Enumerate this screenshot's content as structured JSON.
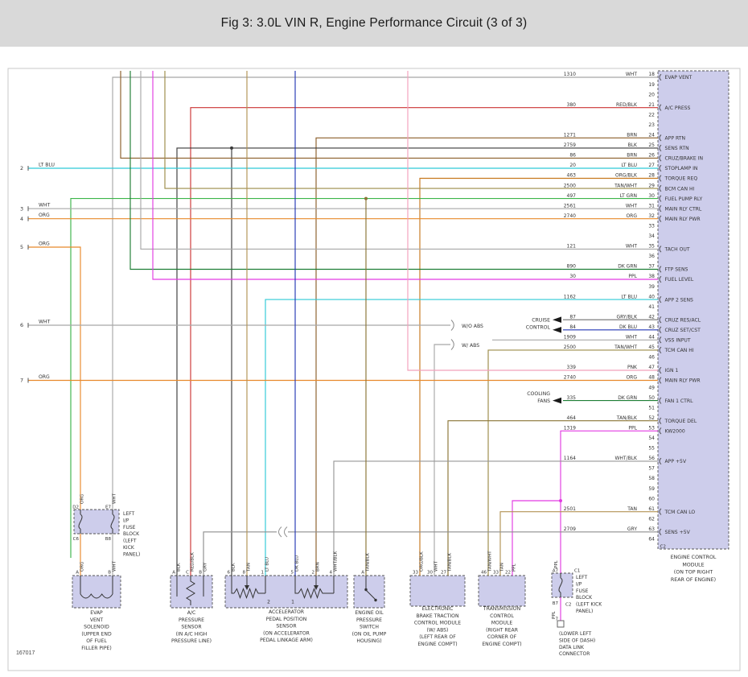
{
  "title": "Fig 3: 3.0L VIN R, Engine Performance Circuit (3 of 3)",
  "footer_code": "167017",
  "wire_colors": {
    "WHT": "#a8a8a8",
    "BLK": "#3a3a3a",
    "GRY": "#8f8f8f",
    "GRY/BLK": "#6f6f6f",
    "WHT/BLK": "#979797",
    "RED/BLK": "#cc3333",
    "BRN": "#8b5e2a",
    "LT BLU": "#2ec9d6",
    "DK BLU": "#2438b5",
    "LT GRN": "#3cb54a",
    "DK GRN": "#1e7e34",
    "ORG": "#e8892b",
    "ORG/BLK": "#c7781e",
    "TAN": "#b29354",
    "TAN/WHT": "#9b8b47",
    "TAN/BLK": "#8a7435",
    "PPL": "#e23be2",
    "PNK": "#f2a0bb"
  },
  "ecm": {
    "connector": "C2",
    "caption": [
      "ENGINE CONTROL",
      "MODULE",
      "(ON TOP RIGHT",
      "REAR OF ENGINE)"
    ],
    "pins": [
      {
        "n": 18,
        "circuit": "1310",
        "color": "WHT",
        "label": "EVAP VENT"
      },
      {
        "n": 19
      },
      {
        "n": 20
      },
      {
        "n": 21,
        "circuit": "380",
        "color": "RED/BLK",
        "label": "A/C PRESS"
      },
      {
        "n": 22
      },
      {
        "n": 23
      },
      {
        "n": 24,
        "circuit": "1271",
        "color": "BRN",
        "label": "APP RTN"
      },
      {
        "n": 25,
        "circuit": "2759",
        "color": "BLK",
        "label": "SENS RTN"
      },
      {
        "n": 26,
        "circuit": "86",
        "color": "BRN",
        "label": "CRUZ/BRAKE IN"
      },
      {
        "n": 27,
        "circuit": "20",
        "color": "LT BLU",
        "label": "STOPLAMP IN"
      },
      {
        "n": 28,
        "circuit": "463",
        "color": "ORG/BLK",
        "label": "TORQUE REQ"
      },
      {
        "n": 29,
        "circuit": "2500",
        "color": "TAN/WHT",
        "label": "BCM CAN HI"
      },
      {
        "n": 30,
        "circuit": "497",
        "color": "LT GRN",
        "label": "FUEL PUMP RLY"
      },
      {
        "n": 31,
        "circuit": "2561",
        "color": "WHT",
        "label": "MAIN RLY CTRL"
      },
      {
        "n": 32,
        "circuit": "2740",
        "color": "ORG",
        "label": "MAIN RLY PWR"
      },
      {
        "n": 33
      },
      {
        "n": 34
      },
      {
        "n": 35,
        "circuit": "121",
        "color": "WHT",
        "label": "TACH OUT"
      },
      {
        "n": 36
      },
      {
        "n": 37,
        "circuit": "890",
        "color": "DK GRN",
        "label": "FTP SENS"
      },
      {
        "n": 38,
        "circuit": "30",
        "color": "PPL",
        "label": "FUEL LEVEL"
      },
      {
        "n": 39
      },
      {
        "n": 40,
        "circuit": "1162",
        "color": "LT BLU",
        "label": "APP 2 SENS"
      },
      {
        "n": 41
      },
      {
        "n": 42,
        "circuit": "87",
        "color": "GRY/BLK",
        "label": "CRUZ RES/ACL"
      },
      {
        "n": 43,
        "circuit": "84",
        "color": "DK BLU",
        "label": "CRUZ SET/CST"
      },
      {
        "n": 44,
        "circuit": "1909",
        "color": "WHT",
        "label": "VSS INPUT"
      },
      {
        "n": 45,
        "circuit": "2500",
        "color": "TAN/WHT",
        "label": "TCM CAN HI"
      },
      {
        "n": 46
      },
      {
        "n": 47,
        "circuit": "339",
        "color": "PNK",
        "label": "IGN 1"
      },
      {
        "n": 48,
        "circuit": "2740",
        "color": "ORG",
        "label": "MAIN RLY PWR"
      },
      {
        "n": 49
      },
      {
        "n": 50,
        "circuit": "335",
        "color": "DK GRN",
        "label": "FAN 1 CTRL"
      },
      {
        "n": 51
      },
      {
        "n": 52,
        "circuit": "464",
        "color": "TAN/BLK",
        "label": "TORQUE DEL"
      },
      {
        "n": 53,
        "circuit": "1319",
        "color": "PPL",
        "label": "KW2000"
      },
      {
        "n": 54
      },
      {
        "n": 55
      },
      {
        "n": 56,
        "circuit": "1164",
        "color": "WHT/BLK",
        "label": "APP +5V"
      },
      {
        "n": 57
      },
      {
        "n": 58
      },
      {
        "n": 59
      },
      {
        "n": 60
      },
      {
        "n": 61,
        "circuit": "2501",
        "color": "TAN",
        "label": "TCM CAN LO"
      },
      {
        "n": 62
      },
      {
        "n": 63,
        "circuit": "2709",
        "color": "GRY",
        "label": "SENS +5V"
      },
      {
        "n": 64
      }
    ]
  },
  "left_taps": [
    {
      "n": "2",
      "color": "LT BLU"
    },
    {
      "n": "3",
      "color": "WHT"
    },
    {
      "n": "4",
      "color": "ORG"
    },
    {
      "n": "5",
      "color": "ORG"
    },
    {
      "n": "6",
      "color": "WHT"
    },
    {
      "n": "7",
      "color": "ORG"
    }
  ],
  "annotations": {
    "cruise_control": [
      "CRUISE",
      "CONTROL"
    ],
    "cooling_fans": [
      "COOLING",
      "FANS"
    ],
    "without_abs": "W/O ABS",
    "with_abs": "W/ ABS"
  },
  "components": [
    {
      "id": "evap",
      "pins": [
        {
          "id": "A",
          "color": "ORG"
        },
        {
          "id": "B",
          "color": "WHT"
        }
      ],
      "caption": [
        "EVAP",
        "VENT",
        "SOLENOID",
        "(UPPER END",
        "OF FUEL",
        "FILLER PIPE)"
      ]
    },
    {
      "id": "ac",
      "pins": [
        {
          "id": "A",
          "color": "BLK"
        },
        {
          "id": "C",
          "color": "RED/BLK"
        },
        {
          "id": "B",
          "color": "GRY"
        }
      ],
      "caption": [
        "A/C",
        "PRESSURE",
        "SENSOR",
        "(IN A/C HIGH",
        "PRESSURE LINE)"
      ]
    },
    {
      "id": "app",
      "pins": [
        {
          "id": "6",
          "color": "BLK"
        },
        {
          "id": "8",
          "color": "TAN"
        },
        {
          "id": "1",
          "color": "LT BLU"
        },
        {
          "id": "5",
          "color": "DK BLU"
        },
        {
          "id": "2",
          "color": "BRN"
        },
        {
          "id": "4",
          "color": "WHT/BLK"
        }
      ],
      "internal_labels": [
        "2",
        "1"
      ],
      "caption": [
        "ACCELERATOR",
        "PEDAL POSITION",
        "SENSOR",
        "(ON ACCELERATOR",
        "PEDAL LINKAGE ARM)"
      ]
    },
    {
      "id": "oil",
      "pins": [
        {
          "id": "A",
          "color": "TAN/BLK"
        }
      ],
      "caption": [
        "ENGINE OIL",
        "PRESSURE",
        "SWITCH",
        "(ON OIL PUMP",
        "HOUSING)"
      ]
    },
    {
      "id": "ebtcm",
      "pins": [
        {
          "id": "33",
          "color": "ORG/BLK"
        },
        {
          "id": "30",
          "color": "WHT"
        },
        {
          "id": "27",
          "color": "TAN/BLK"
        }
      ],
      "caption": [
        "ELECTRONIC",
        "BRAKE TRACTION",
        "CONTROL MODULE",
        "(W/ ABS)",
        "(LEFT REAR OF",
        "ENGINE COMPT)"
      ]
    },
    {
      "id": "tcm",
      "pins": [
        {
          "id": "46",
          "color": "TAN/WHT"
        },
        {
          "id": "33",
          "color": "TAN"
        },
        {
          "id": "22",
          "color": "PPL"
        }
      ],
      "caption": [
        "TRANSMISSION",
        "CONTROL",
        "MODULE",
        "(RIGHT REAR",
        "CORNER OF",
        "ENGINE COMPT)"
      ]
    }
  ],
  "fuse_left": {
    "top_pins": [
      "D2",
      "E7"
    ],
    "bottom_pins": [
      "C6",
      "B8"
    ],
    "riser_colors": [
      "ORG",
      "WHT"
    ],
    "caption": [
      "LEFT",
      "I/P",
      "FUSE",
      "BLOCK",
      "(LEFT",
      "KICK",
      "PANEL)"
    ]
  },
  "fuse_right": {
    "pin_top": "A7",
    "pin_bottom": "B7",
    "conn_top": "C1",
    "conn_bottom": "C2",
    "wire_color": "PPL",
    "caption": [
      "LEFT",
      "I/P",
      "FUSE",
      "BLOCK",
      "(LEFT KICK",
      "PANEL)"
    ]
  },
  "dlc": {
    "pin": "7",
    "wire_color": "PPL",
    "caption": [
      "(LOWER LEFT",
      "SIDE OF DASH)",
      "DATA LINK",
      "CONNECTOR"
    ]
  }
}
